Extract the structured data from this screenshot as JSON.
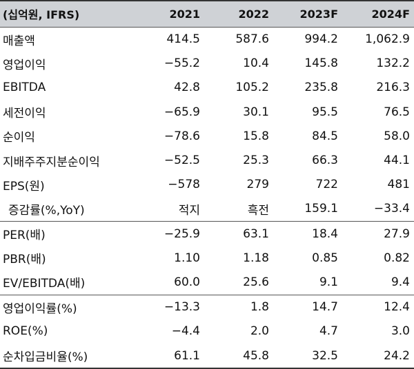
{
  "header": [
    "(십억원, IFRS)",
    "2021",
    "2022",
    "2023F",
    "2024F"
  ],
  "rows": [
    {
      "label": "매출액",
      "values": [
        "414.5",
        "587.6",
        "994.2",
        "1,062.9"
      ]
    },
    {
      "label": "영업이익",
      "values": [
        "−55.2",
        "10.4",
        "145.8",
        "132.2"
      ]
    },
    {
      "label": "EBITDA",
      "values": [
        "42.8",
        "105.2",
        "235.8",
        "216.3"
      ]
    },
    {
      "label": "세전이익",
      "values": [
        "−65.9",
        "30.1",
        "95.5",
        "76.5"
      ]
    },
    {
      "label": "순이익",
      "values": [
        "−78.6",
        "15.8",
        "84.5",
        "58.0"
      ]
    },
    {
      "label": "지배주주지분순이익",
      "values": [
        "−52.5",
        "25.3",
        "66.3",
        "44.1"
      ]
    },
    {
      "label": "EPS(원)",
      "values": [
        "−578",
        "279",
        "722",
        "481"
      ]
    },
    {
      "label": "증감률(%,YoY)",
      "values": [
        "적지",
        "흑전",
        "159.1",
        "−33.4"
      ]
    },
    {
      "label": "PER(배)",
      "values": [
        "−25.9",
        "63.1",
        "18.4",
        "27.9"
      ]
    },
    {
      "label": "PBR(배)",
      "values": [
        "1.10",
        "1.18",
        "0.85",
        "0.82"
      ]
    },
    {
      "label": "EV/EBITDA(배)",
      "values": [
        "60.0",
        "25.6",
        "9.1",
        "9.4"
      ]
    },
    {
      "label": "영업이익률(%)",
      "values": [
        "−13.3",
        "1.8",
        "14.7",
        "12.4"
      ]
    },
    {
      "label": "ROE(%)",
      "values": [
        "−4.4",
        "2.0",
        "4.7",
        "3.0"
      ]
    },
    {
      "label": "순차입금비율(%)",
      "values": [
        "61.1",
        "45.8",
        "32.5",
        "24.2"
      ]
    }
  ]
}
